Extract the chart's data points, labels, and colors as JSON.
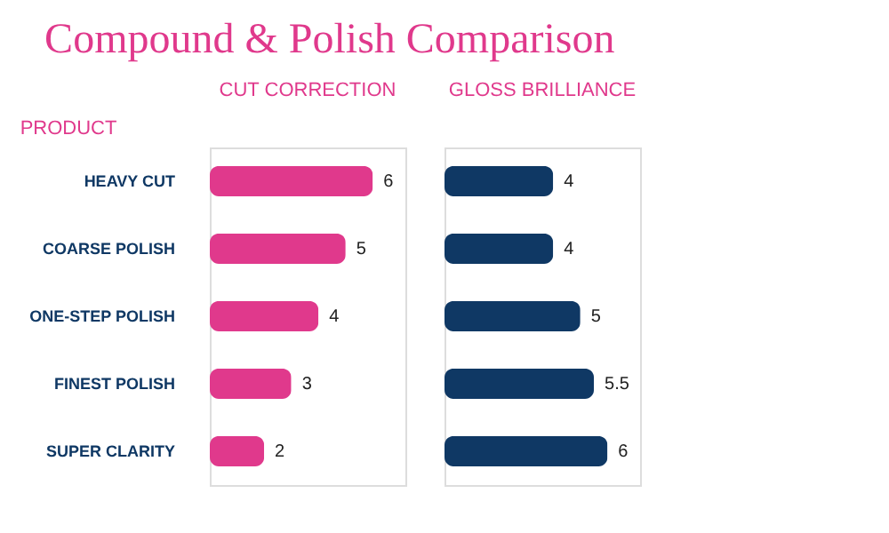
{
  "chart_data": [
    {
      "type": "bar",
      "orientation": "horizontal",
      "title": "Compound & Polish Comparison",
      "subtitle": "CUT CORRECTION",
      "ylabel": "PRODUCT",
      "categories": [
        "HEAVY CUT",
        "COARSE POLISH",
        "ONE-STEP POLISH",
        "FINEST POLISH",
        "SUPER CLARITY"
      ],
      "values": [
        6,
        5,
        4,
        3,
        2
      ],
      "color": "#e0398c",
      "data_labels": true,
      "tick_labels": "y"
    },
    {
      "type": "bar",
      "orientation": "horizontal",
      "subtitle": "GLOSS BRILLIANCE",
      "categories": [
        null,
        null,
        null,
        null,
        null
      ],
      "values": [
        4,
        4,
        5,
        5.5,
        6
      ],
      "color": "#0f3864",
      "data_labels": true,
      "tick_labels": false
    }
  ]
}
